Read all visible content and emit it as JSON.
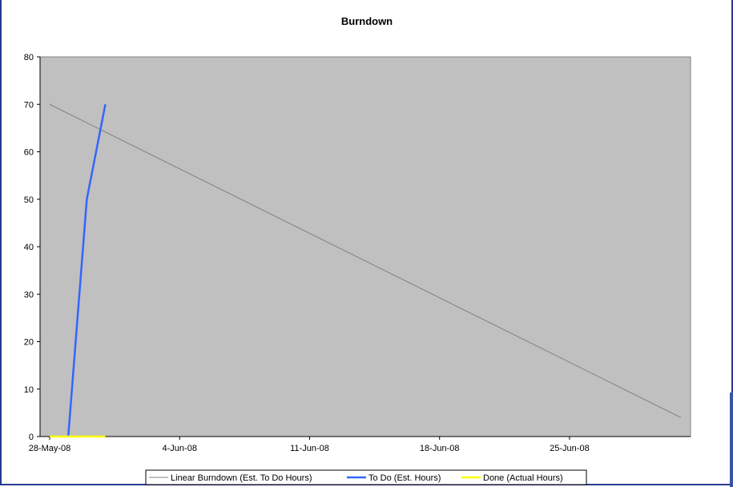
{
  "chart_data": {
    "type": "line",
    "title": "Burndown",
    "xlabel": "",
    "ylabel": "",
    "x_domain": [
      "2008-05-28",
      "2008-07-01"
    ],
    "ylim": [
      0,
      80
    ],
    "y_ticks": [
      0,
      10,
      20,
      30,
      40,
      50,
      60,
      70,
      80
    ],
    "x_ticks": [
      {
        "date": "2008-05-28",
        "label": "28-May-08"
      },
      {
        "date": "2008-06-04",
        "label": "4-Jun-08"
      },
      {
        "date": "2008-06-11",
        "label": "11-Jun-08"
      },
      {
        "date": "2008-06-18",
        "label": "18-Jun-08"
      },
      {
        "date": "2008-06-25",
        "label": "25-Jun-08"
      }
    ],
    "grid": false,
    "legend_position": "bottom",
    "plot_background": "#c0c0c0",
    "series": [
      {
        "name": "Linear Burndown (Est. To Do Hours)",
        "color": "#808080",
        "points": [
          {
            "x": "2008-05-28",
            "y": 70
          },
          {
            "x": "2008-07-01",
            "y": 4
          }
        ]
      },
      {
        "name": "To Do (Est. Hours)",
        "color": "#3366ff",
        "points": [
          {
            "x": "2008-05-29",
            "y": 0
          },
          {
            "x": "2008-05-30",
            "y": 50
          },
          {
            "x": "2008-05-31",
            "y": 70
          }
        ]
      },
      {
        "name": "Done (Actual Hours)",
        "color": "#ffff00",
        "points": [
          {
            "x": "2008-05-28",
            "y": 0
          },
          {
            "x": "2008-05-29",
            "y": 0
          },
          {
            "x": "2008-05-30",
            "y": 0
          },
          {
            "x": "2008-05-31",
            "y": 0
          }
        ]
      }
    ]
  }
}
